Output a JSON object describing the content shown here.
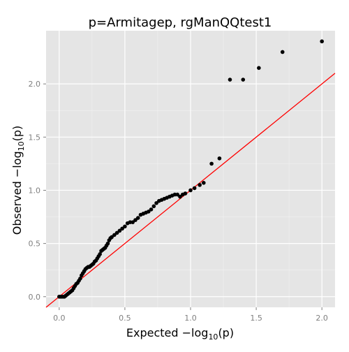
{
  "chart_data": {
    "type": "scatter",
    "title": "p=Armitagep, rgManQQtest1",
    "xlabel": {
      "prefix": "Expected −log",
      "sub": "10",
      "suffix": "(p)"
    },
    "ylabel": {
      "prefix": "Observed −log",
      "sub": "10",
      "suffix": "(p)"
    },
    "xlim": [
      -0.1,
      2.1
    ],
    "ylim": [
      -0.1,
      2.5
    ],
    "x_ticks": [
      0.0,
      0.5,
      1.0,
      1.5,
      2.0
    ],
    "x_tick_labels": [
      "0.0",
      "0.5",
      "1.0",
      "1.5",
      "2.0"
    ],
    "y_ticks": [
      0.0,
      0.5,
      1.0,
      1.5,
      2.0
    ],
    "y_tick_labels": [
      "0.0",
      "0.5",
      "1.0",
      "1.5",
      "2.0"
    ],
    "grid": true,
    "colors": {
      "panel": "#e5e5e5",
      "grid_major": "#ffffff",
      "grid_minor": "#f2f2f2",
      "points": "#000000",
      "reference_line": "#ff0000",
      "tick_labels": "#7f7f7f"
    },
    "reference_line": {
      "slope": 1,
      "intercept": 0
    },
    "points": [
      [
        0.0,
        0.0
      ],
      [
        0.01,
        0.0
      ],
      [
        0.02,
        0.0
      ],
      [
        0.03,
        0.0
      ],
      [
        0.04,
        0.0
      ],
      [
        0.05,
        0.01
      ],
      [
        0.06,
        0.02
      ],
      [
        0.07,
        0.03
      ],
      [
        0.08,
        0.04
      ],
      [
        0.09,
        0.05
      ],
      [
        0.1,
        0.06
      ],
      [
        0.11,
        0.08
      ],
      [
        0.12,
        0.1
      ],
      [
        0.13,
        0.12
      ],
      [
        0.14,
        0.13
      ],
      [
        0.15,
        0.15
      ],
      [
        0.16,
        0.17
      ],
      [
        0.17,
        0.2
      ],
      [
        0.18,
        0.22
      ],
      [
        0.19,
        0.24
      ],
      [
        0.2,
        0.26
      ],
      [
        0.21,
        0.27
      ],
      [
        0.22,
        0.28
      ],
      [
        0.23,
        0.28
      ],
      [
        0.24,
        0.29
      ],
      [
        0.25,
        0.3
      ],
      [
        0.26,
        0.31
      ],
      [
        0.27,
        0.33
      ],
      [
        0.28,
        0.34
      ],
      [
        0.29,
        0.36
      ],
      [
        0.3,
        0.38
      ],
      [
        0.31,
        0.4
      ],
      [
        0.32,
        0.43
      ],
      [
        0.33,
        0.44
      ],
      [
        0.34,
        0.45
      ],
      [
        0.35,
        0.46
      ],
      [
        0.36,
        0.48
      ],
      [
        0.37,
        0.5
      ],
      [
        0.38,
        0.53
      ],
      [
        0.39,
        0.55
      ],
      [
        0.4,
        0.56
      ],
      [
        0.42,
        0.58
      ],
      [
        0.44,
        0.6
      ],
      [
        0.46,
        0.62
      ],
      [
        0.48,
        0.64
      ],
      [
        0.5,
        0.66
      ],
      [
        0.52,
        0.69
      ],
      [
        0.54,
        0.7
      ],
      [
        0.56,
        0.7
      ],
      [
        0.58,
        0.72
      ],
      [
        0.6,
        0.74
      ],
      [
        0.62,
        0.77
      ],
      [
        0.64,
        0.78
      ],
      [
        0.66,
        0.79
      ],
      [
        0.68,
        0.8
      ],
      [
        0.7,
        0.82
      ],
      [
        0.72,
        0.85
      ],
      [
        0.74,
        0.88
      ],
      [
        0.76,
        0.9
      ],
      [
        0.78,
        0.91
      ],
      [
        0.8,
        0.92
      ],
      [
        0.82,
        0.93
      ],
      [
        0.84,
        0.94
      ],
      [
        0.86,
        0.95
      ],
      [
        0.88,
        0.96
      ],
      [
        0.9,
        0.96
      ],
      [
        0.92,
        0.94
      ],
      [
        0.94,
        0.96
      ],
      [
        0.96,
        0.97
      ],
      [
        1.0,
        1.0
      ],
      [
        1.03,
        1.02
      ],
      [
        1.07,
        1.05
      ],
      [
        1.1,
        1.07
      ],
      [
        1.16,
        1.25
      ],
      [
        1.22,
        1.3
      ],
      [
        1.3,
        2.04
      ],
      [
        1.4,
        2.04
      ],
      [
        1.52,
        2.15
      ],
      [
        1.7,
        2.3
      ],
      [
        2.0,
        2.4
      ]
    ]
  }
}
